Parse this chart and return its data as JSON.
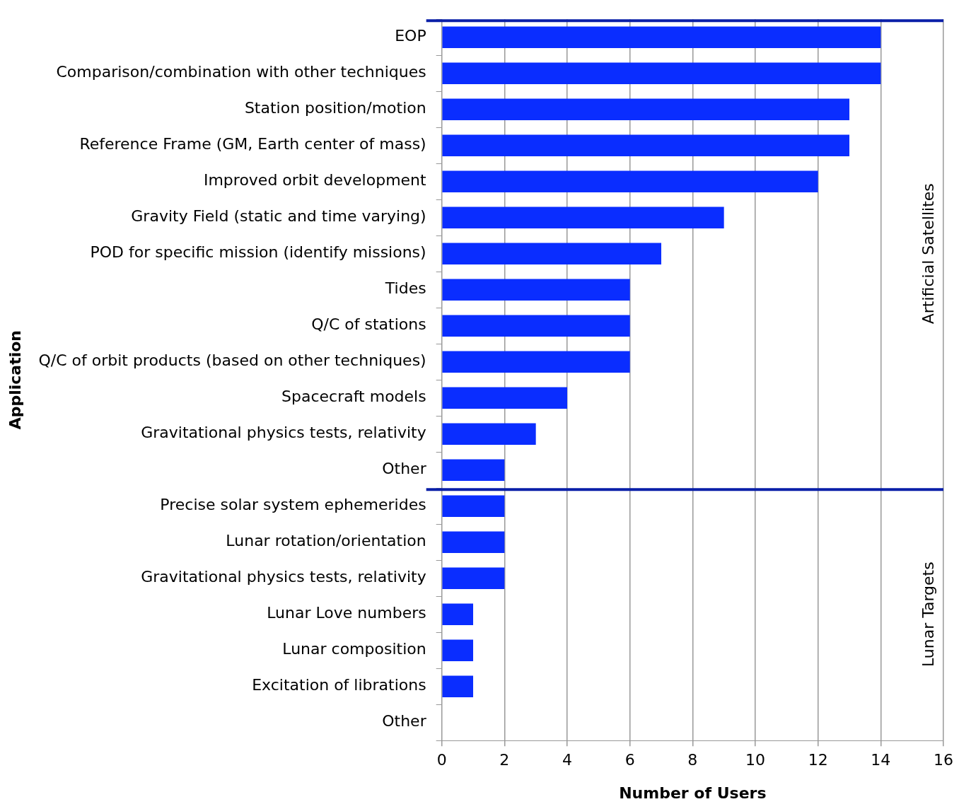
{
  "chart_data": {
    "type": "bar",
    "orientation": "horizontal",
    "xlabel": "Number of Users",
    "ylabel": "Application",
    "categories": [
      "EOP",
      "Comparison/combination with other techniques",
      "Station position/motion",
      "Reference Frame (GM, Earth center of mass)",
      "Improved orbit development",
      "Gravity Field (static and time varying)",
      "POD for specific mission (identify missions)",
      "Tides",
      "Q/C of stations",
      "Q/C of orbit products (based on other techniques)",
      "Spacecraft models",
      "Gravitational physics tests, relativity",
      "Other",
      "Precise solar system ephemerides",
      "Lunar rotation/orientation",
      "Gravitational physics tests, relativity",
      "Lunar Love numbers",
      "Lunar composition",
      "Excitation of librations",
      "Other"
    ],
    "values": [
      14,
      14,
      13,
      13,
      12,
      9,
      7,
      6,
      6,
      6,
      4,
      3,
      2,
      2,
      2,
      2,
      1,
      1,
      1,
      0
    ],
    "color": "#0a2dff",
    "xlim": [
      0,
      16
    ],
    "xticks": [
      0,
      2,
      4,
      6,
      8,
      10,
      12,
      14,
      16
    ],
    "grid": "x",
    "legend": false,
    "annotations": [
      "Artificial Satellites",
      "Lunar Targets"
    ],
    "ref_lines": [
      {
        "axis": "y",
        "value": "EOP",
        "color": "#0a1fa8"
      },
      {
        "axis": "y",
        "value": "Precise solar system ephemerides",
        "color": "#0a1fa8"
      }
    ]
  }
}
